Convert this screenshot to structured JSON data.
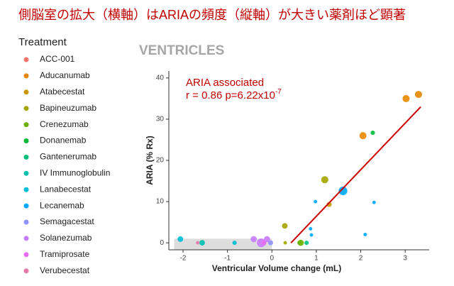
{
  "chart_data": {
    "type": "scatter",
    "title": "側脳室の拡大（横軸）はARIAの頻度（縦軸）が大きい薬剤ほど顕著",
    "subtitle": "VENTRICLES",
    "legend_title": "Treatment",
    "x_label": "Ventricular Volume change (mL)",
    "y_label": "ARIA (% Rx)",
    "annotation": "ARIA associated",
    "annotation_stat": "r = 0.86  p=6.22x10",
    "annotation_exp": "-7",
    "xlim": [
      -2.32,
      3.54
    ],
    "ylim": [
      -1.7,
      41.7
    ],
    "xticks": [
      -2,
      -1,
      0,
      1,
      2,
      3
    ],
    "yticks": [
      0,
      10,
      20,
      30,
      40
    ],
    "fit_line": {
      "color": "#cc0000",
      "x": [
        0.43,
        3.35
      ],
      "y": [
        0,
        33
      ]
    },
    "shaded_region": {
      "color": "#dddddd",
      "xlim": [
        -2.2,
        0
      ],
      "ylim": [
        -1.7,
        1
      ]
    },
    "series": [
      {
        "name": "ACC-001",
        "color": "#F8766D",
        "x": [],
        "values": [],
        "sizes": []
      },
      {
        "name": "Aducanumab",
        "color": "#E58700",
        "x": [
          3.02,
          3.3,
          2.05
        ],
        "values": [
          35,
          36,
          26
        ],
        "sizes": [
          4,
          4,
          4
        ]
      },
      {
        "name": "Atabecestat",
        "color": "#C99800",
        "x": [
          1.29
        ],
        "values": [
          9.3
        ],
        "sizes": [
          2
        ]
      },
      {
        "name": "Bapineuzumab",
        "color": "#A3A500",
        "x": [
          0.29,
          1.19,
          0.3
        ],
        "values": [
          4.1,
          15.3,
          0
        ],
        "sizes": [
          2.5,
          4,
          1
        ]
      },
      {
        "name": "Crenezumab",
        "color": "#6BB100",
        "x": [
          0.65,
          0.62
        ],
        "values": [
          0,
          0
        ],
        "sizes": [
          3,
          1.5
        ]
      },
      {
        "name": "Donanemab",
        "color": "#00BA38",
        "x": [
          2.27
        ],
        "values": [
          26.7
        ],
        "sizes": [
          1.5
        ]
      },
      {
        "name": "Gantenerumab",
        "color": "#00BF7D",
        "x": [
          0.78
        ],
        "values": [
          0
        ],
        "sizes": [
          1.5
        ]
      },
      {
        "name": "IV Immunoglobulin",
        "color": "#00C0AF",
        "x": [
          -1.57
        ],
        "values": [
          0
        ],
        "sizes": [
          2.5
        ]
      },
      {
        "name": "Lanabecestat",
        "color": "#00BCD8",
        "x": [
          -2.06,
          -0.84
        ],
        "values": [
          0.9,
          0
        ],
        "sizes": [
          2.5,
          1.5
        ]
      },
      {
        "name": "Lecanemab",
        "color": "#00A9FF",
        "x": [
          1.6,
          0.98,
          0.87,
          0.89,
          2.1,
          2.3
        ],
        "values": [
          12.6,
          10,
          3.4,
          1.9,
          2,
          9.8
        ],
        "sizes": [
          6,
          1,
          1,
          1,
          1,
          1
        ]
      },
      {
        "name": "Semagacestat",
        "color": "#8F91FF",
        "x": [
          -0.03
        ],
        "values": [
          0
        ],
        "sizes": [
          2
        ]
      },
      {
        "name": "Solanezumab",
        "color": "#C77CFF",
        "x": [
          -0.41,
          -0.24,
          -0.11
        ],
        "values": [
          0.9,
          0,
          0.9
        ],
        "sizes": [
          3,
          6,
          3
        ]
      },
      {
        "name": "Tramiprosate",
        "color": "#E76BF3",
        "x": [
          -0.18
        ],
        "values": [
          0
        ],
        "sizes": [
          2
        ]
      },
      {
        "name": "Verubecestat",
        "color": "#E377A6",
        "x": [
          -1.67
        ],
        "values": [
          0
        ],
        "sizes": [
          1
        ]
      }
    ]
  }
}
